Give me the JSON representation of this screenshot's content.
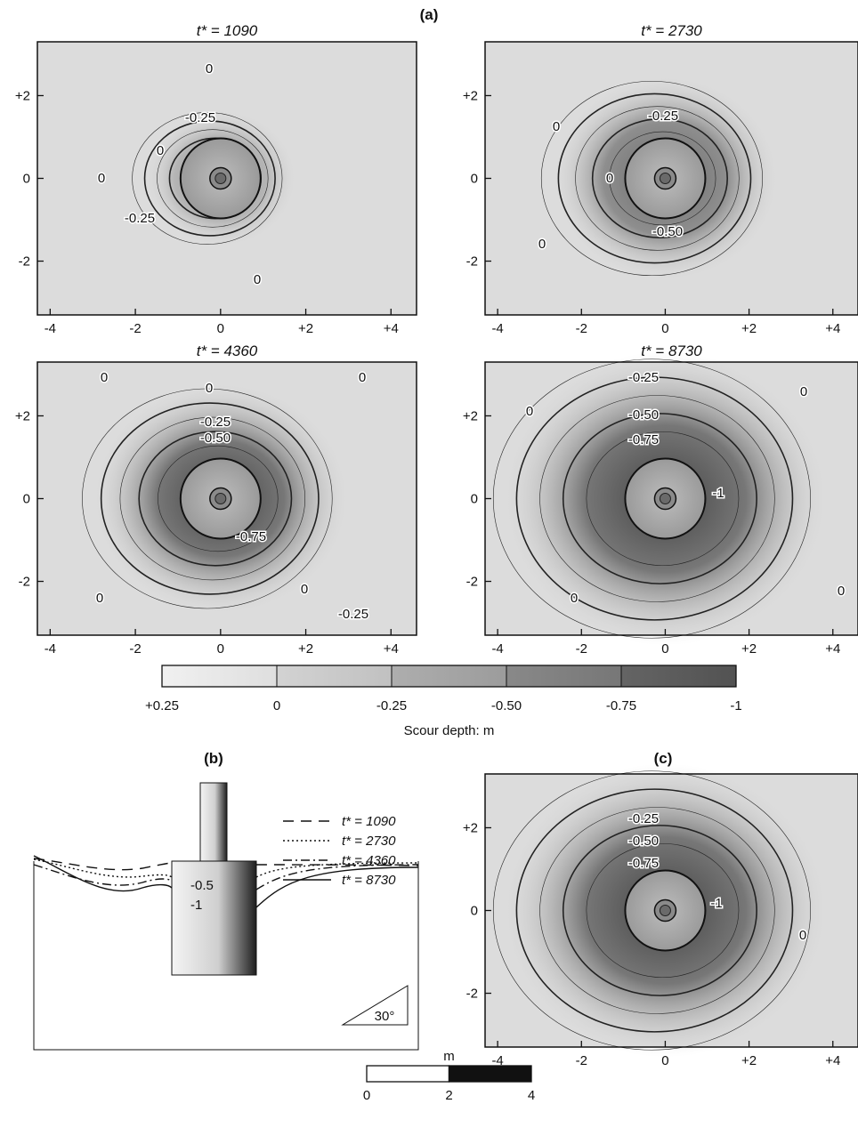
{
  "figure": {
    "label_a": "(a)",
    "label_b": "(b)",
    "label_c": "(c)"
  },
  "panels": [
    {
      "id": "t1090",
      "title": "t* = 1090",
      "contour_labels": [
        "0",
        "-0.25",
        "0",
        "0",
        "-0.25",
        "0"
      ]
    },
    {
      "id": "t2730",
      "title": "t* = 2730",
      "contour_labels": [
        "-0.25",
        "0",
        "0",
        "-0.50",
        "0"
      ]
    },
    {
      "id": "t4360",
      "title": "t* = 4360",
      "contour_labels": [
        "0",
        "0",
        "0",
        "-0.25",
        "-0.50",
        "-0.75",
        "0",
        "0",
        "-0.25"
      ]
    },
    {
      "id": "t8730",
      "title": "t* = 8730",
      "contour_labels": [
        "-0.25",
        "-0.50",
        "-0.75",
        "-1",
        "0",
        "0",
        "0",
        "0"
      ]
    }
  ],
  "panel_c": {
    "contour_labels": [
      "-0.25",
      "-0.50",
      "-0.75",
      "-1",
      "0"
    ]
  },
  "axes": {
    "x_ticks": [
      "-4",
      "-2",
      "0",
      "+2",
      "+4"
    ],
    "x_tick_values": [
      -4,
      -2,
      0,
      2,
      4
    ],
    "y_ticks": [
      "+2",
      "0",
      "-2"
    ],
    "y_tick_values": [
      2,
      0,
      -2
    ],
    "xlim": [
      -4.3,
      4.6
    ],
    "ylim": [
      -3.3,
      3.3
    ]
  },
  "colorbar": {
    "ticks": [
      "+0.25",
      "0",
      "-0.25",
      "-0.50",
      "-0.75",
      "-1"
    ],
    "values": [
      0.25,
      0,
      -0.25,
      -0.5,
      -0.75,
      -1
    ],
    "title": "Scour depth: m",
    "colors": [
      "#ececec",
      "#d2d2d2",
      "#a8a8a8",
      "#7e7e7e",
      "#555555"
    ]
  },
  "profile": {
    "legend": [
      {
        "name": "t* = 1090",
        "style": "dashed"
      },
      {
        "name": "t* = 2730",
        "style": "dotted"
      },
      {
        "name": "t* = 4360",
        "style": "dashdot"
      },
      {
        "name": "t* = 8730",
        "style": "solid"
      }
    ],
    "depth_labels": [
      "-0.5",
      "-1"
    ],
    "angle_label": "30°"
  },
  "scale_bar": {
    "unit": "m",
    "ticks": [
      "0",
      "2",
      "4"
    ]
  },
  "chart_data": [
    {
      "type": "heatmap",
      "title": "t* = 1090",
      "xlim": [
        -4.3,
        4.6
      ],
      "ylim": [
        -3.3,
        3.3
      ],
      "pit": {
        "center": [
          0,
          0
        ],
        "max_depth": -0.35
      },
      "contour_levels": [
        0.25,
        0,
        -0.25,
        -0.5,
        -0.75,
        -1
      ]
    },
    {
      "type": "heatmap",
      "title": "t* = 2730",
      "xlim": [
        -4.3,
        4.6
      ],
      "ylim": [
        -3.3,
        3.3
      ],
      "pit": {
        "center": [
          0,
          0
        ],
        "max_depth": -0.6
      },
      "contour_levels": [
        0.25,
        0,
        -0.25,
        -0.5,
        -0.75,
        -1
      ]
    },
    {
      "type": "heatmap",
      "title": "t* = 4360",
      "xlim": [
        -4.3,
        4.6
      ],
      "ylim": [
        -3.3,
        3.3
      ],
      "pit": {
        "center": [
          0,
          0
        ],
        "max_depth": -0.85
      },
      "contour_levels": [
        0.25,
        0,
        -0.25,
        -0.5,
        -0.75,
        -1
      ]
    },
    {
      "type": "heatmap",
      "title": "t* = 8730",
      "xlim": [
        -4.3,
        4.6
      ],
      "ylim": [
        -3.3,
        3.3
      ],
      "pit": {
        "center": [
          0,
          0
        ],
        "max_depth": -1.05
      },
      "contour_levels": [
        0.25,
        0,
        -0.25,
        -0.5,
        -0.75,
        -1
      ]
    },
    {
      "type": "line",
      "title": "",
      "series": [
        {
          "name": "t* = 1090",
          "style": "dashed"
        },
        {
          "name": "t* = 2730",
          "style": "dotted"
        },
        {
          "name": "t* = 4360",
          "style": "dashdot"
        },
        {
          "name": "t* = 8730",
          "style": "solid"
        }
      ]
    },
    {
      "type": "heatmap",
      "title": "",
      "xlim": [
        -4.3,
        4.6
      ],
      "ylim": [
        -3.3,
        3.3
      ],
      "pit": {
        "center": [
          0,
          0
        ],
        "max_depth": -1.05
      },
      "contour_levels": [
        0.25,
        0,
        -0.25,
        -0.5,
        -0.75,
        -1
      ]
    }
  ]
}
